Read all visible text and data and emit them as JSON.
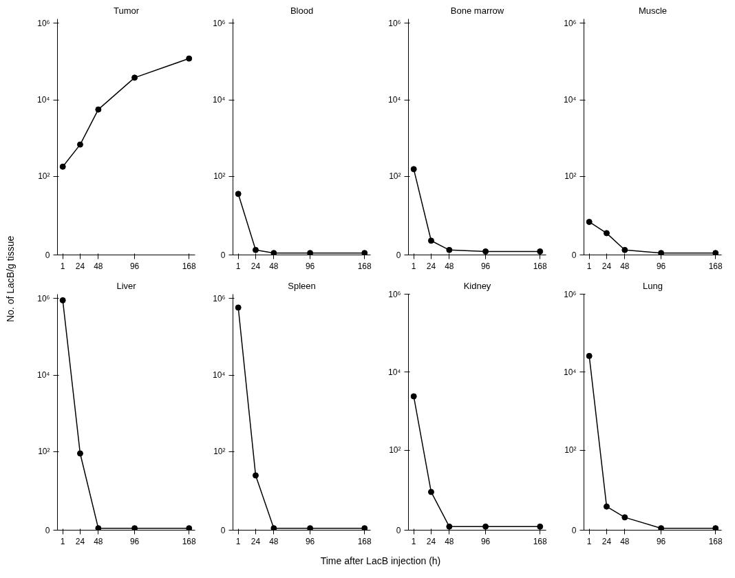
{
  "chart_data": [
    {
      "type": "line",
      "title": "Tumor",
      "ylabel": "No. of LacB/g tissue",
      "x": [
        1,
        24,
        48,
        96,
        168
      ],
      "series": [
        {
          "color": "#000000",
          "values": [
            180,
            680,
            5600,
            38000,
            120000
          ]
        }
      ],
      "log": "y",
      "marker": "circle",
      "grid": false,
      "xlim": [
        -6,
        176
      ],
      "xticks": [
        1,
        24,
        48,
        96,
        168
      ],
      "ylim": [
        0,
        1300000
      ],
      "yticks": [
        0,
        {
          "value": 100,
          "label": "10²"
        },
        {
          "value": 10000,
          "label": "10⁴"
        },
        {
          "value": 1000000,
          "label": "10⁶"
        }
      ]
    },
    {
      "type": "line",
      "title": "Blood",
      "x": [
        1,
        24,
        48,
        96,
        168
      ],
      "series": [
        {
          "color": "#000000",
          "values": [
            35,
            1.2,
            1,
            1,
            1
          ]
        }
      ],
      "log": "y",
      "marker": "circle",
      "grid": false,
      "xlim": [
        -6,
        176
      ],
      "xticks": [
        1,
        24,
        48,
        96,
        168
      ],
      "ylim": [
        0,
        1300000
      ],
      "yticks": [
        0,
        {
          "value": 100,
          "label": "10²"
        },
        {
          "value": 10000,
          "label": "10⁴"
        },
        {
          "value": 1000000,
          "label": "10⁶"
        }
      ]
    },
    {
      "type": "line",
      "title": "Bone marrow",
      "x": [
        1,
        24,
        48,
        96,
        168
      ],
      "series": [
        {
          "color": "#000000",
          "values": [
            155,
            2.1,
            1.2,
            1.1,
            1.1
          ]
        }
      ],
      "log": "y",
      "marker": "circle",
      "grid": false,
      "xlim": [
        -6,
        176
      ],
      "xticks": [
        1,
        24,
        48,
        96,
        168
      ],
      "ylim": [
        0,
        1300000
      ],
      "yticks": [
        0,
        {
          "value": 100,
          "label": "10²"
        },
        {
          "value": 10000,
          "label": "10⁴"
        },
        {
          "value": 1000000,
          "label": "10⁶"
        }
      ]
    },
    {
      "type": "line",
      "title": "Muscle",
      "x": [
        1,
        24,
        48,
        96,
        168
      ],
      "series": [
        {
          "color": "#000000",
          "values": [
            6.5,
            3.3,
            1.2,
            1,
            1
          ]
        }
      ],
      "log": "y",
      "marker": "circle",
      "grid": false,
      "xlim": [
        -6,
        176
      ],
      "xticks": [
        1,
        24,
        48,
        96,
        168
      ],
      "ylim": [
        0,
        1300000
      ],
      "yticks": [
        0,
        {
          "value": 100,
          "label": "10²"
        },
        {
          "value": 10000,
          "label": "10⁴"
        },
        {
          "value": 1000000,
          "label": "10⁶"
        }
      ]
    },
    {
      "type": "line",
      "title": "Liver",
      "x": [
        1,
        24,
        48,
        96,
        168
      ],
      "series": [
        {
          "color": "#000000",
          "values": [
            900000,
            90,
            1,
            1,
            1
          ]
        }
      ],
      "log": "y",
      "marker": "circle",
      "grid": false,
      "xlim": [
        -6,
        176
      ],
      "xticks": [
        1,
        24,
        48,
        96,
        168
      ],
      "ylim": [
        0,
        1300000
      ],
      "yticks": [
        0,
        {
          "value": 100,
          "label": "10²"
        },
        {
          "value": 10000,
          "label": "10⁴"
        },
        {
          "value": 1000000,
          "label": "10⁶"
        }
      ]
    },
    {
      "type": "line",
      "title": "Spleen",
      "xlabel": "Time after LacB injection (h)",
      "x": [
        1,
        24,
        48,
        96,
        168
      ],
      "series": [
        {
          "color": "#000000",
          "values": [
            580000,
            24,
            1,
            1,
            1
          ]
        }
      ],
      "log": "y",
      "marker": "circle",
      "grid": false,
      "xlim": [
        -6,
        176
      ],
      "xticks": [
        1,
        24,
        48,
        96,
        168
      ],
      "ylim": [
        0,
        1300000
      ],
      "yticks": [
        0,
        {
          "value": 100,
          "label": "10²"
        },
        {
          "value": 10000,
          "label": "10⁴"
        },
        {
          "value": 1000000,
          "label": "10⁶"
        }
      ]
    },
    {
      "type": "line",
      "title": "Kidney",
      "x": [
        1,
        24,
        48,
        96,
        168
      ],
      "series": [
        {
          "color": "#000000",
          "values": [
            2400,
            8.5,
            1.1,
            1.1,
            1.1
          ]
        }
      ],
      "log": "y",
      "marker": "circle",
      "grid": false,
      "xlim": [
        -6,
        176
      ],
      "xticks": [
        1,
        24,
        48,
        96,
        168
      ],
      "ylim": [
        0,
        1000000
      ],
      "yticks": [
        0,
        {
          "value": 100,
          "label": "10²"
        },
        {
          "value": 10000,
          "label": "10⁴"
        },
        {
          "value": 1000000,
          "label": "10⁶"
        }
      ]
    },
    {
      "type": "line",
      "title": "Lung",
      "x": [
        1,
        24,
        48,
        96,
        168
      ],
      "series": [
        {
          "color": "#000000",
          "values": [
            26000,
            3.6,
            1.9,
            1,
            1
          ]
        }
      ],
      "log": "y",
      "marker": "circle",
      "grid": false,
      "xlim": [
        -6,
        176
      ],
      "xticks": [
        1,
        24,
        48,
        96,
        168
      ],
      "ylim": [
        0,
        1000000
      ],
      "yticks": [
        0,
        {
          "value": 100,
          "label": "10²"
        },
        {
          "value": 10000,
          "label": "10⁴"
        },
        {
          "value": 1000000,
          "label": "10⁶"
        }
      ]
    }
  ]
}
